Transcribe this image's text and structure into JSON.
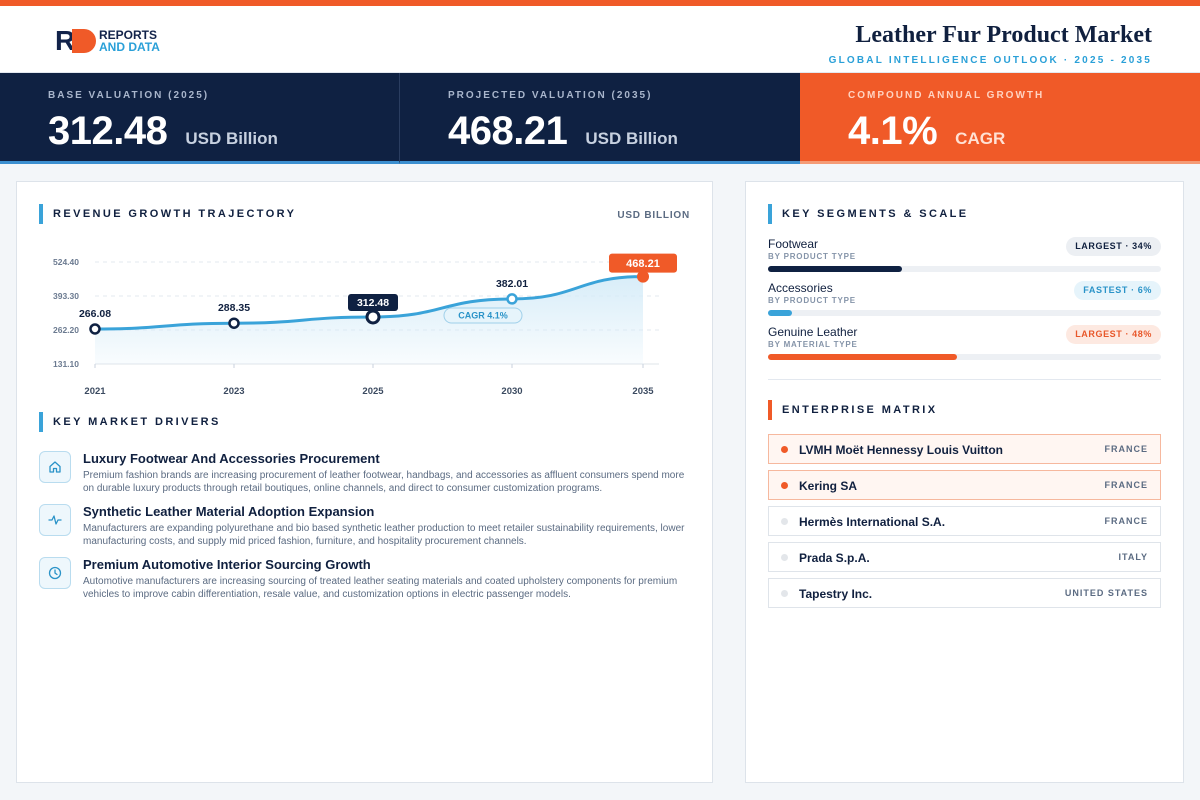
{
  "header": {
    "logo_line1": "REPORTS",
    "logo_line2": "AND DATA",
    "title": "Leather Fur Product Market",
    "subtitle": "GLOBAL INTELLIGENCE OUTLOOK  ·  2025 - 2035"
  },
  "kpis": [
    {
      "label": "BASE VALUATION (2025)",
      "value": "312.48",
      "unit": "USD Billion"
    },
    {
      "label": "PROJECTED VALUATION (2035)",
      "value": "468.21",
      "unit": "USD Billion"
    },
    {
      "label": "COMPOUND ANNUAL GROWTH",
      "value": "4.1%",
      "unit": "CAGR"
    }
  ],
  "trajectory": {
    "title": "REVENUE GROWTH TRAJECTORY",
    "unit": "USD BILLION",
    "cagr_label": "CAGR 4.1%"
  },
  "chart_data": {
    "type": "area",
    "x": [
      "2021",
      "2023",
      "2025",
      "2030",
      "2035"
    ],
    "values": [
      266.08,
      288.35,
      312.48,
      382.01,
      468.21
    ],
    "data_labels": [
      "266.08",
      "288.35",
      "312.48",
      "382.01",
      "468.21"
    ],
    "y_ticks": [
      "524.40",
      "393.30",
      "262.20",
      "131.10"
    ],
    "ylim": [
      131.1,
      524.4
    ],
    "grid": true,
    "colors": {
      "line": "#3aa3d9",
      "fill": "#d6ecf8",
      "highlight": "#f05a28",
      "base": "#0f2142"
    }
  },
  "drivers": {
    "title": "KEY MARKET DRIVERS",
    "items": [
      {
        "icon": "home-icon",
        "title": "Luxury Footwear And Accessories Procurement",
        "desc": "Premium fashion brands are increasing procurement of leather footwear, handbags, and accessories as affluent consumers spend more on durable luxury products through retail boutiques, online channels, and direct to consumer customization programs."
      },
      {
        "icon": "pulse-icon",
        "title": "Synthetic Leather Material Adoption Expansion",
        "desc": "Manufacturers are expanding polyurethane and bio based synthetic leather production to meet retailer sustainability requirements, lower manufacturing costs, and supply mid priced fashion, furniture, and hospitality procurement channels."
      },
      {
        "icon": "clock-icon",
        "title": "Premium Automotive Interior Sourcing Growth",
        "desc": "Automotive manufacturers are increasing sourcing of treated leather seating materials and coated upholstery components for premium vehicles to improve cabin differentiation, resale value, and customization options in electric passenger models."
      }
    ]
  },
  "segments": {
    "title": "KEY SEGMENTS & SCALE",
    "items": [
      {
        "name": "Footwear",
        "sub": "BY PRODUCT TYPE",
        "badge": "LARGEST · 34%",
        "share": 34,
        "color": "#0f2142",
        "badge_bg": "#eceff3",
        "badge_fg": "#10203f"
      },
      {
        "name": "Accessories",
        "sub": "BY PRODUCT TYPE",
        "badge": "FASTEST · 6%",
        "share": 6,
        "color": "#3aa3d9",
        "badge_bg": "#e6f4fb",
        "badge_fg": "#2a93c8"
      },
      {
        "name": "Genuine Leather",
        "sub": "BY MATERIAL TYPE",
        "badge": "LARGEST · 48%",
        "share": 48,
        "color": "#f05a28",
        "badge_bg": "#fde9e1",
        "badge_fg": "#e8572a"
      }
    ]
  },
  "matrix": {
    "title": "ENTERPRISE MATRIX",
    "rows": [
      {
        "name": "LVMH Moët Hennessy Louis Vuitton",
        "country": "FRANCE",
        "highlight": true
      },
      {
        "name": "Kering SA",
        "country": "FRANCE",
        "highlight": true
      },
      {
        "name": "Hermès International S.A.",
        "country": "FRANCE",
        "highlight": false
      },
      {
        "name": "Prada S.p.A.",
        "country": "ITALY",
        "highlight": false
      },
      {
        "name": "Tapestry Inc.",
        "country": "UNITED STATES",
        "highlight": false
      }
    ]
  }
}
